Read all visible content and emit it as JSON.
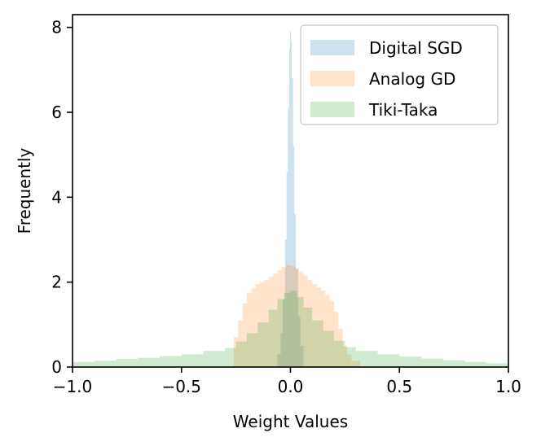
{
  "chart_data": {
    "type": "histogram",
    "xlabel": "Weight Values",
    "ylabel": "Frequently",
    "xlim": [
      -1.0,
      1.0
    ],
    "ylim": [
      0,
      8.3
    ],
    "xticks": [
      -1.0,
      -0.5,
      0.0,
      0.5,
      1.0
    ],
    "xtick_labels": [
      "−1.0",
      "−0.5",
      "0.0",
      "0.5",
      "1.0"
    ],
    "yticks": [
      0,
      2,
      4,
      6,
      8
    ],
    "ytick_labels": [
      "0",
      "2",
      "4",
      "6",
      "8"
    ],
    "grid": false,
    "legend_position": "top-right",
    "series": [
      {
        "name": "Digital SGD",
        "color": "#1f77b4",
        "alpha": 0.22,
        "bins": [
          [
            -0.06,
            -0.045,
            0.3
          ],
          [
            -0.045,
            -0.035,
            0.8
          ],
          [
            -0.035,
            -0.025,
            1.6
          ],
          [
            -0.025,
            -0.018,
            3.0
          ],
          [
            -0.018,
            -0.012,
            4.6
          ],
          [
            -0.012,
            -0.006,
            6.1
          ],
          [
            -0.006,
            -0.002,
            7.5
          ],
          [
            -0.002,
            0.002,
            7.9
          ],
          [
            0.002,
            0.006,
            7.7
          ],
          [
            0.006,
            0.012,
            6.8
          ],
          [
            0.012,
            0.018,
            5.2
          ],
          [
            0.018,
            0.025,
            3.6
          ],
          [
            0.025,
            0.035,
            2.3
          ],
          [
            0.035,
            0.045,
            1.2
          ],
          [
            0.045,
            0.06,
            0.5
          ]
        ]
      },
      {
        "name": "Analog GD",
        "color": "#ff7f0e",
        "alpha": 0.22,
        "bins": [
          [
            -0.26,
            -0.24,
            0.7
          ],
          [
            -0.24,
            -0.22,
            1.1
          ],
          [
            -0.22,
            -0.2,
            1.5
          ],
          [
            -0.2,
            -0.18,
            1.75
          ],
          [
            -0.18,
            -0.16,
            1.85
          ],
          [
            -0.16,
            -0.14,
            1.95
          ],
          [
            -0.14,
            -0.12,
            2.0
          ],
          [
            -0.12,
            -0.1,
            2.05
          ],
          [
            -0.1,
            -0.08,
            2.12
          ],
          [
            -0.08,
            -0.06,
            2.2
          ],
          [
            -0.06,
            -0.04,
            2.28
          ],
          [
            -0.04,
            -0.02,
            2.35
          ],
          [
            -0.02,
            0.0,
            2.4
          ],
          [
            0.0,
            0.02,
            2.38
          ],
          [
            0.02,
            0.04,
            2.33
          ],
          [
            0.04,
            0.06,
            2.25
          ],
          [
            0.06,
            0.08,
            2.15
          ],
          [
            0.08,
            0.1,
            2.05
          ],
          [
            0.1,
            0.12,
            1.95
          ],
          [
            0.12,
            0.14,
            1.88
          ],
          [
            0.14,
            0.16,
            1.8
          ],
          [
            0.16,
            0.18,
            1.7
          ],
          [
            0.18,
            0.2,
            1.55
          ],
          [
            0.2,
            0.22,
            1.3
          ],
          [
            0.22,
            0.24,
            0.9
          ],
          [
            0.24,
            0.26,
            0.5
          ],
          [
            0.26,
            0.28,
            0.3
          ],
          [
            0.28,
            0.32,
            0.15
          ]
        ]
      },
      {
        "name": "Tiki-Taka",
        "color": "#2ca02c",
        "alpha": 0.22,
        "bins": [
          [
            -1.0,
            -0.9,
            0.12
          ],
          [
            -0.9,
            -0.8,
            0.15
          ],
          [
            -0.8,
            -0.7,
            0.19
          ],
          [
            -0.7,
            -0.6,
            0.22
          ],
          [
            -0.6,
            -0.5,
            0.26
          ],
          [
            -0.5,
            -0.4,
            0.3
          ],
          [
            -0.4,
            -0.3,
            0.38
          ],
          [
            -0.3,
            -0.25,
            0.45
          ],
          [
            -0.25,
            -0.2,
            0.6
          ],
          [
            -0.2,
            -0.15,
            0.8
          ],
          [
            -0.15,
            -0.1,
            1.05
          ],
          [
            -0.1,
            -0.06,
            1.35
          ],
          [
            -0.06,
            -0.03,
            1.6
          ],
          [
            -0.03,
            0.0,
            1.75
          ],
          [
            0.0,
            0.03,
            1.8
          ],
          [
            0.03,
            0.06,
            1.65
          ],
          [
            0.06,
            0.1,
            1.4
          ],
          [
            0.1,
            0.15,
            1.1
          ],
          [
            0.15,
            0.2,
            0.85
          ],
          [
            0.2,
            0.25,
            0.62
          ],
          [
            0.25,
            0.3,
            0.47
          ],
          [
            0.3,
            0.4,
            0.38
          ],
          [
            0.4,
            0.5,
            0.3
          ],
          [
            0.5,
            0.6,
            0.25
          ],
          [
            0.6,
            0.7,
            0.2
          ],
          [
            0.7,
            0.8,
            0.16
          ],
          [
            0.8,
            0.9,
            0.12
          ],
          [
            0.9,
            1.0,
            0.09
          ]
        ]
      }
    ]
  }
}
